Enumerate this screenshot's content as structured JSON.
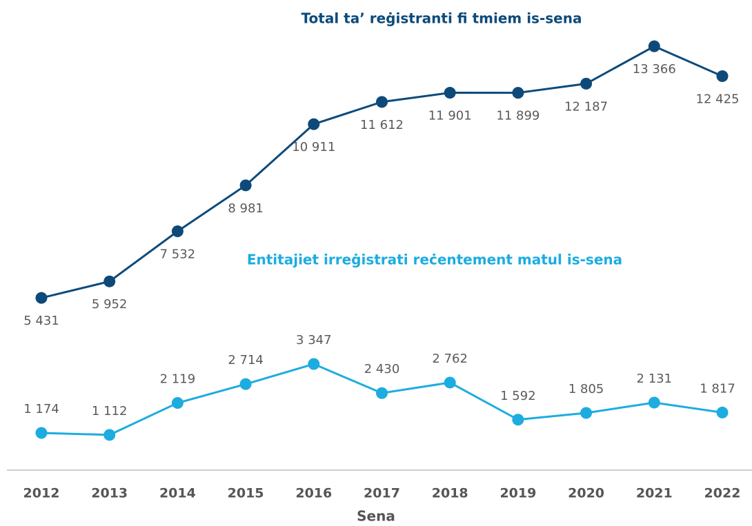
{
  "chart_data": {
    "type": "line",
    "categories": [
      "2012",
      "2013",
      "2014",
      "2015",
      "2016",
      "2017",
      "2018",
      "2019",
      "2020",
      "2021",
      "2022"
    ],
    "x_label": "Sena",
    "ylim": [
      0,
      14000
    ],
    "series": [
      {
        "name": "Total ta’ reġistranti fi tmiem is-sena",
        "color": "#0d4a7a",
        "values": [
          5431,
          5952,
          7532,
          8981,
          10911,
          11612,
          11901,
          11899,
          12187,
          13366,
          12425
        ],
        "value_labels": [
          "5 431",
          "5 952",
          "7 532",
          "8 981",
          "10 911",
          "11 612",
          "11 901",
          "11 899",
          "12 187",
          "13 366",
          "12 425"
        ]
      },
      {
        "name": "Entitajiet irreġistrati reċentement matul is-sena",
        "color": "#1cace0",
        "values": [
          1174,
          1112,
          2119,
          2714,
          3347,
          2430,
          2762,
          1592,
          1805,
          2131,
          1817
        ],
        "value_labels": [
          "1 174",
          "1 112",
          "2 119",
          "2 714",
          "3 347",
          "2 430",
          "2 762",
          "1 592",
          "1 805",
          "2 131",
          "1 817"
        ]
      }
    ]
  }
}
